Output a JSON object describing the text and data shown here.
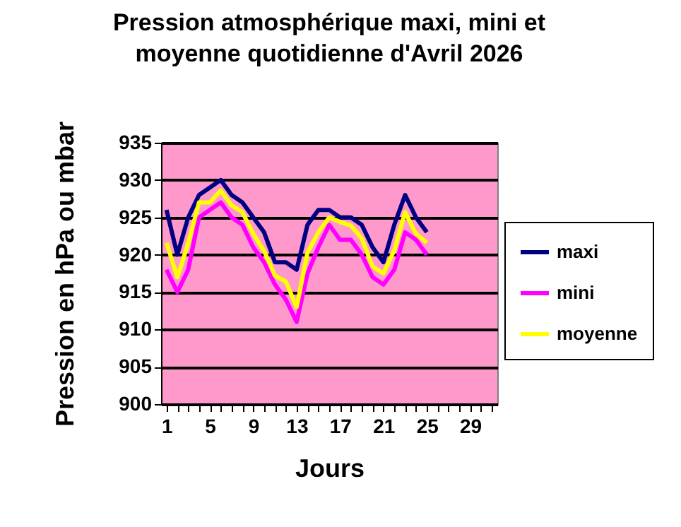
{
  "chart_data": {
    "type": "line",
    "title": "Pression atmosphérique maxi, mini et moyenne quotidienne d'Avril  2026",
    "xlabel": "Jours",
    "ylabel": "Pression en hPa ou mbar",
    "x": [
      1,
      2,
      3,
      4,
      5,
      6,
      7,
      8,
      9,
      10,
      11,
      12,
      13,
      14,
      15,
      16,
      17,
      18,
      19,
      20,
      21,
      22,
      23,
      24,
      25
    ],
    "series": [
      {
        "name": "maxi",
        "color": "#000080",
        "values": [
          926,
          920,
          925,
          928,
          929,
          930,
          928,
          927,
          925,
          923,
          919,
          919,
          918,
          924,
          926,
          926,
          925,
          925,
          924,
          921,
          919,
          924,
          928,
          925,
          923
        ]
      },
      {
        "name": "mini",
        "color": "#ff00ff",
        "values": [
          918,
          915,
          918,
          925,
          926,
          927,
          925,
          924,
          921,
          919,
          916,
          914,
          911,
          917.5,
          921,
          924,
          922,
          922,
          920,
          917,
          916,
          918,
          923,
          922,
          920
        ]
      },
      {
        "name": "moyenne",
        "color": "#ffff00",
        "values": [
          921.6,
          917,
          921.5,
          927,
          927,
          928.6,
          926.6,
          925.7,
          922.8,
          920.5,
          917.2,
          916.4,
          913,
          920.3,
          923,
          925,
          924.4,
          923.9,
          922.2,
          918.4,
          917.5,
          920.6,
          925.7,
          922.8,
          921.6
        ]
      }
    ],
    "xlim": [
      0.5,
      31.5
    ],
    "xticks": [
      1,
      {
        "value": 2,
        "label": null
      },
      {
        "value": 3,
        "label": null
      },
      {
        "value": 4,
        "label": null
      },
      5,
      {
        "value": 6,
        "label": null
      },
      {
        "value": 7,
        "label": null
      },
      {
        "value": 8,
        "label": null
      },
      9,
      {
        "value": 10,
        "label": null
      },
      {
        "value": 11,
        "label": null
      },
      {
        "value": 12,
        "label": null
      },
      13,
      {
        "value": 14,
        "label": null
      },
      {
        "value": 15,
        "label": null
      },
      {
        "value": 16,
        "label": null
      },
      17,
      {
        "value": 18,
        "label": null
      },
      {
        "value": 19,
        "label": null
      },
      {
        "value": 20,
        "label": null
      },
      21,
      {
        "value": 22,
        "label": null
      },
      {
        "value": 23,
        "label": null
      },
      {
        "value": 24,
        "label": null
      },
      25,
      {
        "value": 26,
        "label": null
      },
      {
        "value": 27,
        "label": null
      },
      {
        "value": 28,
        "label": null
      },
      29,
      {
        "value": 30,
        "label": null
      },
      {
        "value": 31,
        "label": null
      }
    ],
    "ylim": [
      900,
      935
    ],
    "yticks": [
      900,
      905,
      910,
      915,
      920,
      925,
      930,
      935
    ],
    "grid": "y",
    "legend": "right",
    "marker": "none"
  }
}
